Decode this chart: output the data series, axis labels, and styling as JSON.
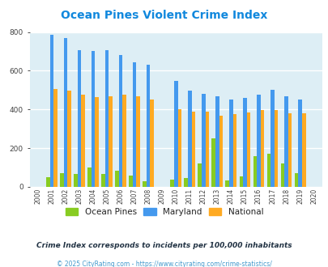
{
  "title": "Ocean Pines Violent Crime Index",
  "years": [
    2000,
    2001,
    2002,
    2003,
    2004,
    2005,
    2006,
    2007,
    2008,
    2009,
    2010,
    2011,
    2012,
    2013,
    2014,
    2015,
    2016,
    2017,
    2018,
    2019,
    2020
  ],
  "ocean_pines": [
    0,
    50,
    70,
    65,
    100,
    65,
    85,
    60,
    28,
    0,
    38,
    45,
    120,
    250,
    32,
    55,
    158,
    170,
    120,
    70,
    0
  ],
  "maryland": [
    0,
    785,
    770,
    707,
    703,
    707,
    680,
    645,
    630,
    0,
    548,
    498,
    482,
    468,
    450,
    460,
    475,
    500,
    468,
    452,
    0
  ],
  "national": [
    0,
    507,
    497,
    475,
    463,
    470,
    475,
    467,
    453,
    0,
    400,
    388,
    388,
    367,
    375,
    383,
    397,
    398,
    380,
    380,
    0
  ],
  "bar_width": 0.27,
  "colors": {
    "ocean_pines": "#88cc22",
    "maryland": "#4499ee",
    "national": "#ffaa22"
  },
  "plot_bg_color": "#ddeef5",
  "fig_bg_color": "#ffffff",
  "ylim": [
    0,
    800
  ],
  "yticks": [
    0,
    200,
    400,
    600,
    800
  ],
  "subtitle": "Crime Index corresponds to incidents per 100,000 inhabitants",
  "footer": "© 2025 CityRating.com - https://www.cityrating.com/crime-statistics/",
  "title_color": "#1188dd",
  "subtitle_color": "#223344",
  "footer_color": "#4499cc",
  "legend_labels": [
    "Ocean Pines",
    "Maryland",
    "National"
  ],
  "grid_color": "#ffffff",
  "grid_linewidth": 1.0
}
